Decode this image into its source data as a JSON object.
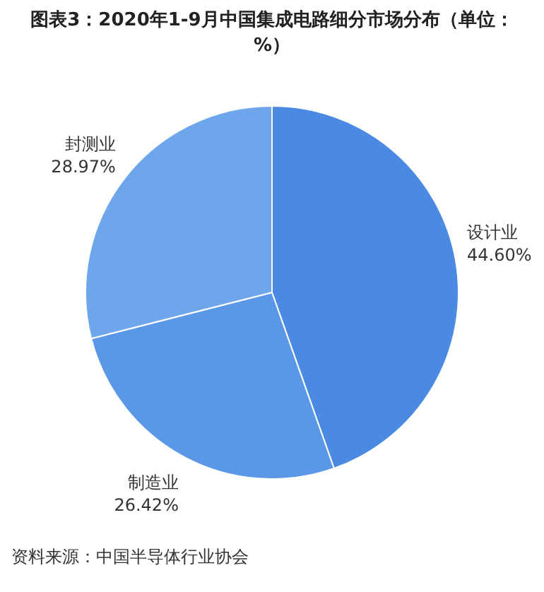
{
  "chart_data": {
    "type": "pie",
    "title": "图表3：2020年1-9月中国集成电路细分市场分布（单位：%）",
    "categories": [
      "设计业",
      "制造业",
      "封测业"
    ],
    "values": [
      44.6,
      26.42,
      28.97
    ],
    "colors": [
      "#4a8ae3",
      "#5a97e6",
      "#6ea6ec"
    ],
    "value_labels": [
      "44.60%",
      "26.42%",
      "28.97%"
    ],
    "legend": false,
    "annotations": [
      "资料来源：中国半导体行业协会"
    ]
  }
}
